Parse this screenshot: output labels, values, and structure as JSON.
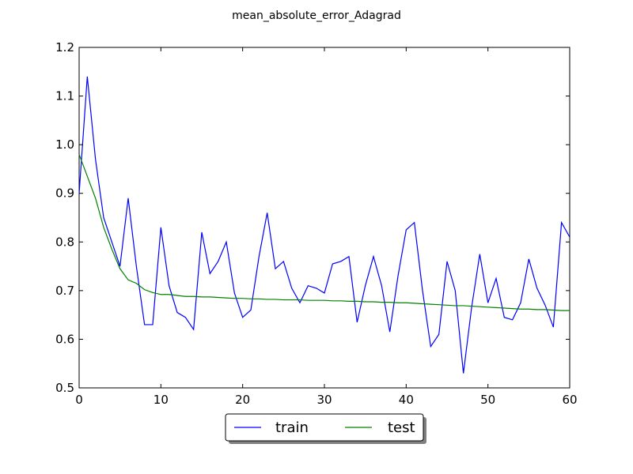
{
  "chart_data": {
    "type": "line",
    "title": "mean_absolute_error_Adagrad",
    "xlabel": "",
    "ylabel": "",
    "xlim": [
      0,
      60
    ],
    "ylim": [
      0.5,
      1.2
    ],
    "xticks": [
      0,
      10,
      20,
      30,
      40,
      50,
      60
    ],
    "xtick_labels": [
      "0",
      "10",
      "20",
      "30",
      "40",
      "50",
      "60"
    ],
    "yticks": [
      0.5,
      0.6,
      0.7,
      0.8,
      0.9,
      1.0,
      1.1,
      1.2
    ],
    "ytick_labels": [
      "0.5",
      "0.6",
      "0.7",
      "0.8",
      "0.9",
      "1.0",
      "1.1",
      "1.2"
    ],
    "grid": false,
    "legend_position": "bottom-center-outside",
    "series": [
      {
        "name": "train",
        "color": "#0000ff",
        "x": [
          0,
          1,
          2,
          3,
          4,
          5,
          6,
          7,
          8,
          9,
          10,
          11,
          12,
          13,
          14,
          15,
          16,
          17,
          18,
          19,
          20,
          21,
          22,
          23,
          24,
          25,
          26,
          27,
          28,
          29,
          30,
          31,
          32,
          33,
          34,
          35,
          36,
          37,
          38,
          39,
          40,
          41,
          42,
          43,
          44,
          45,
          46,
          47,
          48,
          49,
          50,
          51,
          52,
          53,
          54,
          55,
          56,
          57,
          58,
          59,
          60
        ],
        "values": [
          0.9,
          1.14,
          0.97,
          0.85,
          0.8,
          0.75,
          0.89,
          0.75,
          0.63,
          0.63,
          0.83,
          0.71,
          0.655,
          0.645,
          0.62,
          0.82,
          0.735,
          0.76,
          0.8,
          0.695,
          0.645,
          0.66,
          0.77,
          0.86,
          0.745,
          0.76,
          0.705,
          0.675,
          0.71,
          0.705,
          0.695,
          0.755,
          0.76,
          0.77,
          0.635,
          0.71,
          0.77,
          0.71,
          0.615,
          0.73,
          0.825,
          0.84,
          0.7,
          0.585,
          0.61,
          0.76,
          0.7,
          0.53,
          0.665,
          0.775,
          0.675,
          0.725,
          0.645,
          0.64,
          0.675,
          0.765,
          0.705,
          0.67,
          0.625,
          0.84,
          0.81
        ]
      },
      {
        "name": "test",
        "color": "#008000",
        "x": [
          0,
          1,
          2,
          3,
          4,
          5,
          6,
          7,
          8,
          9,
          10,
          11,
          12,
          13,
          14,
          15,
          16,
          17,
          18,
          19,
          20,
          21,
          22,
          23,
          24,
          25,
          26,
          27,
          28,
          29,
          30,
          31,
          32,
          33,
          34,
          35,
          36,
          37,
          38,
          39,
          40,
          41,
          42,
          43,
          44,
          45,
          46,
          47,
          48,
          49,
          50,
          51,
          52,
          53,
          54,
          55,
          56,
          57,
          58,
          59,
          60
        ],
        "values": [
          0.98,
          0.935,
          0.89,
          0.83,
          0.785,
          0.745,
          0.722,
          0.715,
          0.702,
          0.696,
          0.692,
          0.692,
          0.69,
          0.688,
          0.688,
          0.687,
          0.687,
          0.686,
          0.685,
          0.684,
          0.684,
          0.683,
          0.683,
          0.682,
          0.682,
          0.681,
          0.681,
          0.681,
          0.68,
          0.68,
          0.68,
          0.679,
          0.679,
          0.678,
          0.678,
          0.677,
          0.677,
          0.676,
          0.676,
          0.675,
          0.675,
          0.674,
          0.673,
          0.672,
          0.671,
          0.67,
          0.669,
          0.669,
          0.668,
          0.667,
          0.666,
          0.665,
          0.664,
          0.663,
          0.662,
          0.662,
          0.661,
          0.661,
          0.66,
          0.659,
          0.659
        ]
      }
    ]
  }
}
